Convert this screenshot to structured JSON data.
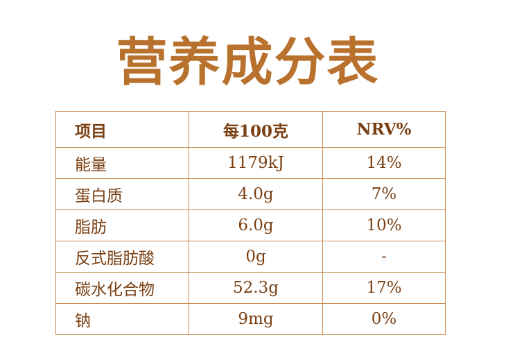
{
  "header": {
    "title": "营养成分表"
  },
  "table": {
    "columns": [
      "项目",
      "每100克",
      "NRV%"
    ],
    "rows": [
      [
        "能量",
        "1179kJ",
        "14%"
      ],
      [
        "蛋白质",
        "4.0g",
        "7%"
      ],
      [
        "脂肪",
        "6.0g",
        "10%"
      ],
      [
        "反式脂肪酸",
        "0g",
        "-"
      ],
      [
        "碳水化合物",
        "52.3g",
        "17%"
      ],
      [
        "钠",
        "9mg",
        "0%"
      ]
    ]
  }
}
